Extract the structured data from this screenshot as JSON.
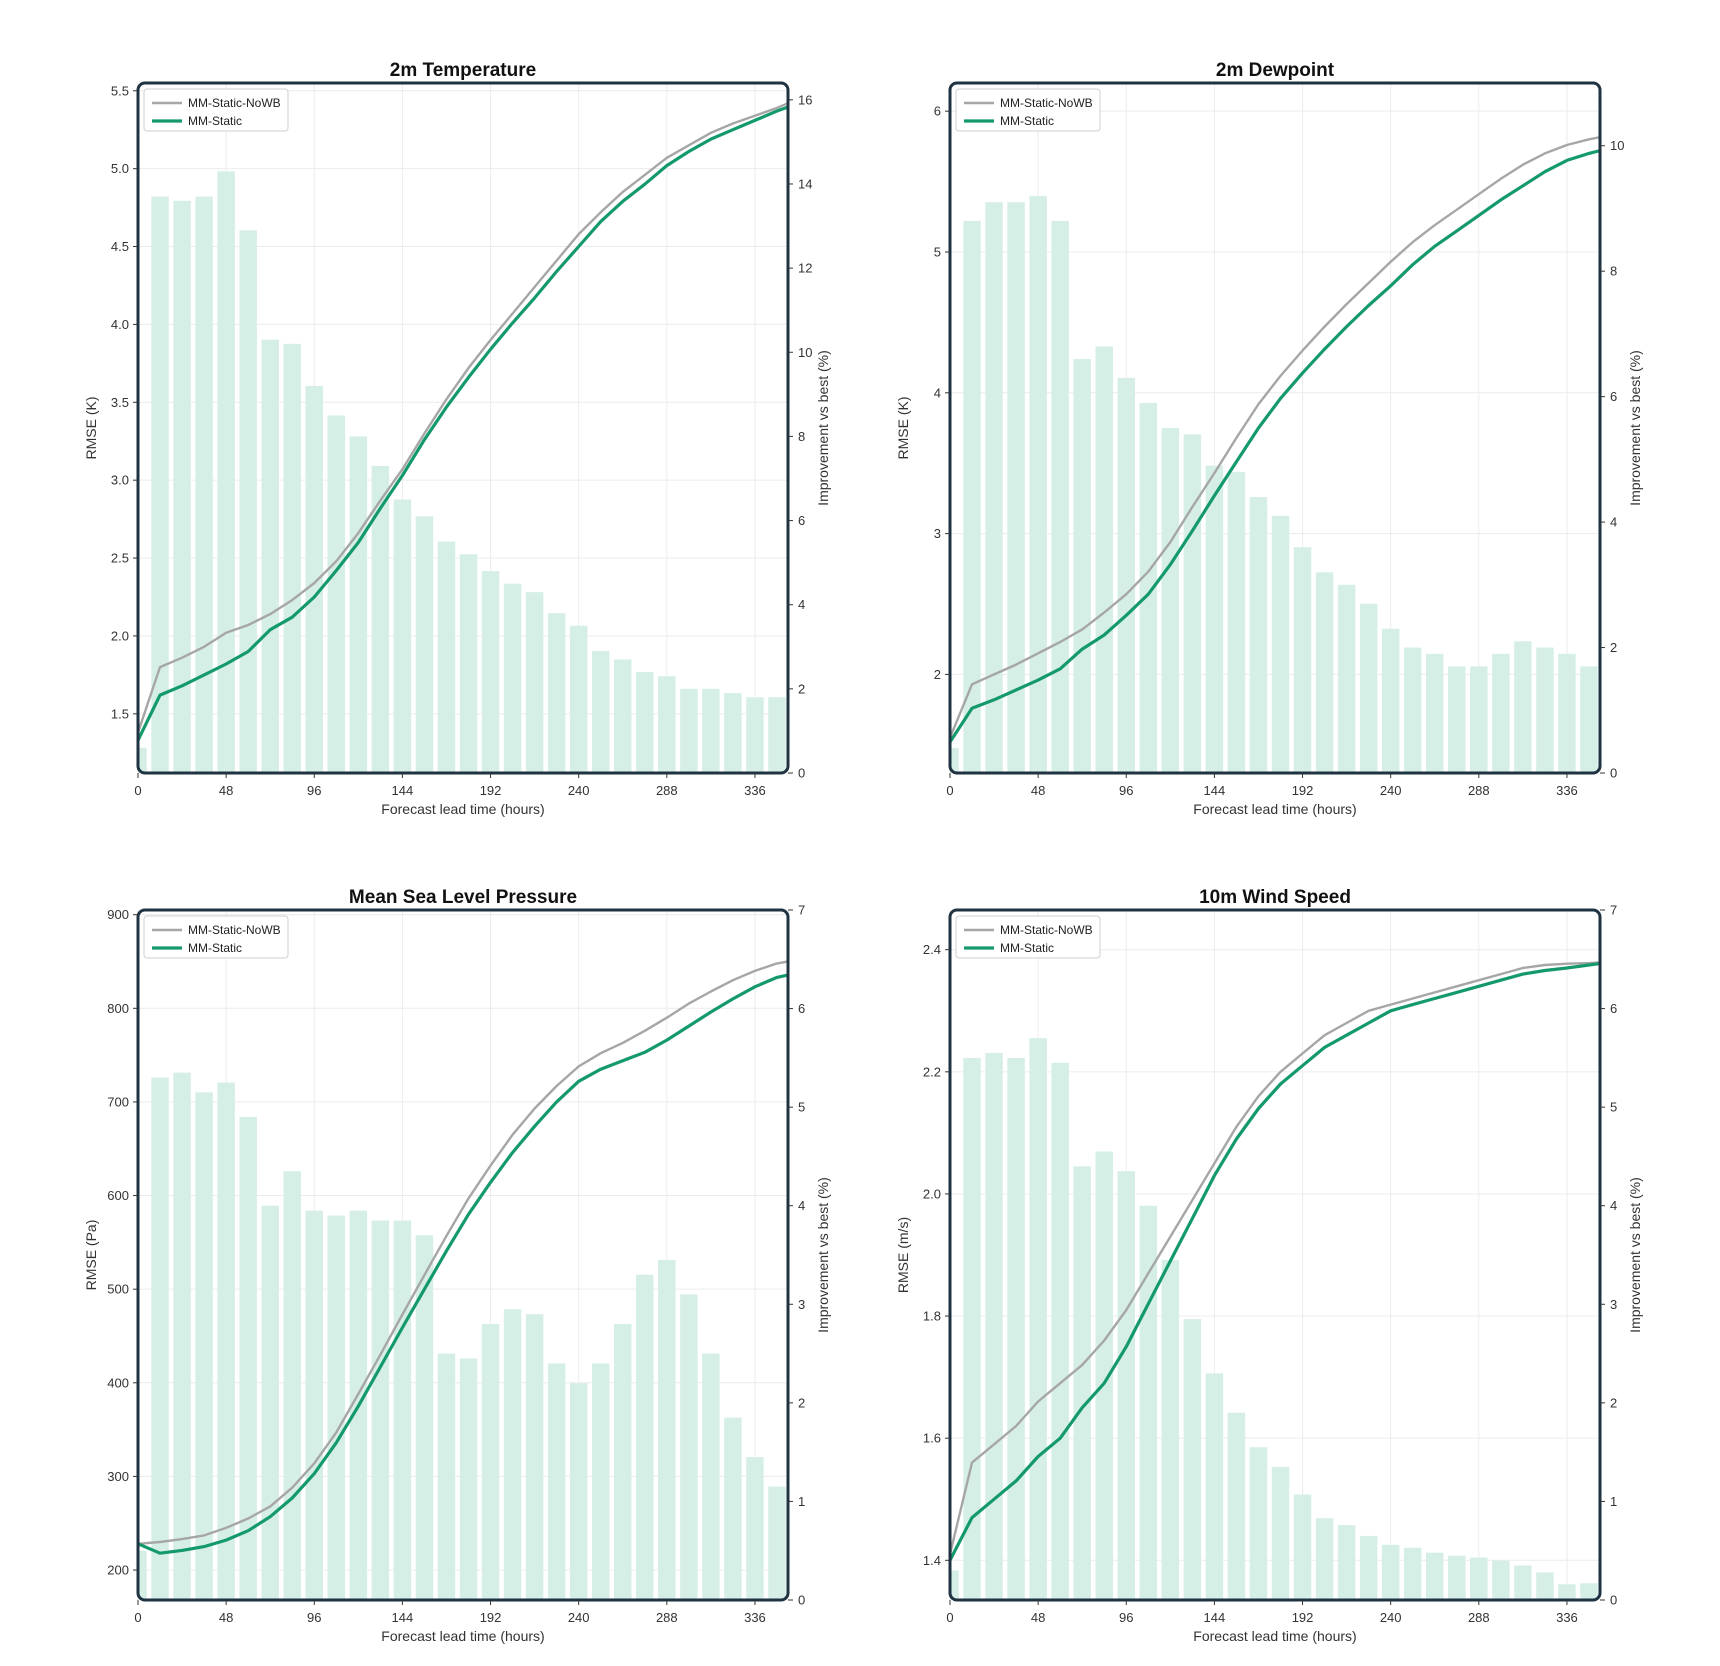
{
  "colors": {
    "frame": "#1f3342",
    "grid": "#ececec",
    "bar": "#d6efe6",
    "nowb_line": "#a6a6a6",
    "static_line": "#14996d"
  },
  "chart_data": [
    {
      "type": "line",
      "title": "2m Temperature",
      "xlabel": "Forecast lead time (hours)",
      "ylabel": "RMSE (K)",
      "y2label": "Improvement vs best (%)",
      "xlim": [
        0,
        354
      ],
      "xticks": [
        0,
        48,
        96,
        144,
        192,
        240,
        288,
        336
      ],
      "ylim": [
        1.12,
        5.55
      ],
      "yticks": [
        1.5,
        2.0,
        2.5,
        3.0,
        3.5,
        4.0,
        4.5,
        5.0,
        5.5
      ],
      "ytick_labels": [
        "1.5",
        "2.0",
        "2.5",
        "3.0",
        "3.5",
        "4.0",
        "4.5",
        "5.0",
        "5.5"
      ],
      "y2lim": [
        0,
        16.4
      ],
      "y2ticks": [
        0,
        2,
        4,
        6,
        8,
        10,
        12,
        14,
        16
      ],
      "grid": true,
      "legend": "top-left",
      "x": [
        0,
        12,
        24,
        36,
        48,
        60,
        72,
        84,
        96,
        108,
        120,
        132,
        144,
        156,
        168,
        180,
        192,
        204,
        216,
        228,
        240,
        252,
        264,
        276,
        288,
        300,
        312,
        324,
        336,
        348,
        360
      ],
      "series": [
        {
          "name": "MM-Static-NoWB",
          "color_key": "nowb_line",
          "values": [
            1.38,
            1.8,
            1.86,
            1.93,
            2.02,
            2.07,
            2.14,
            2.23,
            2.34,
            2.48,
            2.66,
            2.87,
            3.07,
            3.3,
            3.52,
            3.72,
            3.9,
            4.07,
            4.24,
            4.41,
            4.58,
            4.72,
            4.85,
            4.96,
            5.07,
            5.15,
            5.23,
            5.29,
            5.34,
            5.39,
            5.45
          ]
        },
        {
          "name": "MM-Static",
          "color_key": "static_line",
          "values": [
            1.33,
            1.62,
            1.68,
            1.75,
            1.82,
            1.9,
            2.04,
            2.12,
            2.25,
            2.42,
            2.6,
            2.82,
            3.03,
            3.26,
            3.47,
            3.66,
            3.84,
            4.01,
            4.17,
            4.34,
            4.5,
            4.66,
            4.79,
            4.9,
            5.02,
            5.11,
            5.19,
            5.25,
            5.31,
            5.37,
            5.42
          ]
        }
      ],
      "bar_series": {
        "axis": "secondary",
        "x": [
          0,
          12,
          24,
          36,
          48,
          60,
          72,
          84,
          96,
          108,
          120,
          132,
          144,
          156,
          168,
          180,
          192,
          204,
          216,
          228,
          240,
          252,
          264,
          276,
          288,
          300,
          312,
          324,
          336,
          348
        ],
        "values": [
          0.6,
          13.7,
          13.6,
          13.7,
          14.3,
          12.9,
          10.3,
          10.2,
          9.2,
          8.5,
          8.0,
          7.3,
          6.5,
          6.1,
          5.5,
          5.2,
          4.8,
          4.5,
          4.3,
          3.8,
          3.5,
          2.9,
          2.7,
          2.4,
          2.3,
          2.0,
          2.0,
          1.9,
          1.8,
          1.8
        ]
      }
    },
    {
      "type": "line",
      "title": "2m Dewpoint",
      "xlabel": "Forecast lead time (hours)",
      "ylabel": "RMSE (K)",
      "y2label": "Improvement vs best (%)",
      "xlim": [
        0,
        354
      ],
      "xticks": [
        0,
        48,
        96,
        144,
        192,
        240,
        288,
        336
      ],
      "ylim": [
        1.3,
        6.2
      ],
      "yticks": [
        2,
        3,
        4,
        5,
        6
      ],
      "ytick_labels": [
        "2",
        "3",
        "4",
        "5",
        "6"
      ],
      "y2lim": [
        0,
        11.0
      ],
      "y2ticks": [
        0,
        2,
        4,
        6,
        8,
        10
      ],
      "grid": true,
      "legend": "top-left",
      "x": [
        0,
        12,
        24,
        36,
        48,
        60,
        72,
        84,
        96,
        108,
        120,
        132,
        144,
        156,
        168,
        180,
        192,
        204,
        216,
        228,
        240,
        252,
        264,
        276,
        288,
        300,
        312,
        324,
        336,
        348,
        360
      ],
      "series": [
        {
          "name": "MM-Static-NoWB",
          "color_key": "nowb_line",
          "values": [
            1.55,
            1.93,
            2.0,
            2.07,
            2.15,
            2.23,
            2.32,
            2.44,
            2.57,
            2.73,
            2.94,
            3.19,
            3.43,
            3.68,
            3.92,
            4.12,
            4.3,
            4.47,
            4.63,
            4.78,
            4.93,
            5.07,
            5.19,
            5.3,
            5.41,
            5.52,
            5.62,
            5.7,
            5.76,
            5.8,
            5.83
          ]
        },
        {
          "name": "MM-Static",
          "color_key": "static_line",
          "values": [
            1.52,
            1.76,
            1.82,
            1.89,
            1.96,
            2.04,
            2.18,
            2.28,
            2.42,
            2.57,
            2.78,
            3.02,
            3.27,
            3.51,
            3.75,
            3.96,
            4.14,
            4.31,
            4.47,
            4.62,
            4.76,
            4.91,
            5.04,
            5.15,
            5.26,
            5.37,
            5.47,
            5.57,
            5.65,
            5.7,
            5.74
          ]
        }
      ],
      "bar_series": {
        "axis": "secondary",
        "x": [
          0,
          12,
          24,
          36,
          48,
          60,
          72,
          84,
          96,
          108,
          120,
          132,
          144,
          156,
          168,
          180,
          192,
          204,
          216,
          228,
          240,
          252,
          264,
          276,
          288,
          300,
          312,
          324,
          336,
          348
        ],
        "values": [
          0.4,
          8.8,
          9.1,
          9.1,
          9.2,
          8.8,
          6.6,
          6.8,
          6.3,
          5.9,
          5.5,
          5.4,
          4.9,
          4.8,
          4.4,
          4.1,
          3.6,
          3.2,
          3.0,
          2.7,
          2.3,
          2.0,
          1.9,
          1.7,
          1.7,
          1.9,
          2.1,
          2.0,
          1.9,
          1.7
        ]
      }
    },
    {
      "type": "line",
      "title": "Mean Sea Level Pressure",
      "xlabel": "Forecast lead time (hours)",
      "ylabel": "RMSE (Pa)",
      "y2label": "Improvement vs best (%)",
      "xlim": [
        0,
        354
      ],
      "xticks": [
        0,
        48,
        96,
        144,
        192,
        240,
        288,
        336
      ],
      "ylim": [
        168,
        905
      ],
      "yticks": [
        200,
        300,
        400,
        500,
        600,
        700,
        800,
        900
      ],
      "ytick_labels": [
        "200",
        "300",
        "400",
        "500",
        "600",
        "700",
        "800",
        "900"
      ],
      "y2lim": [
        0,
        7.0
      ],
      "y2ticks": [
        0,
        1,
        2,
        3,
        4,
        5,
        6,
        7
      ],
      "grid": true,
      "legend": "top-left",
      "x": [
        0,
        12,
        24,
        36,
        48,
        60,
        72,
        84,
        96,
        108,
        120,
        132,
        144,
        156,
        168,
        180,
        192,
        204,
        216,
        228,
        240,
        252,
        264,
        276,
        288,
        300,
        312,
        324,
        336,
        348,
        360
      ],
      "series": [
        {
          "name": "MM-Static-NoWB",
          "color_key": "nowb_line",
          "values": [
            228,
            230,
            233,
            237,
            245,
            255,
            268,
            288,
            314,
            347,
            388,
            430,
            473,
            515,
            557,
            597,
            632,
            665,
            693,
            717,
            738,
            752,
            763,
            776,
            790,
            805,
            818,
            830,
            840,
            848,
            852
          ]
        },
        {
          "name": "MM-Static",
          "color_key": "static_line",
          "values": [
            228,
            218,
            221,
            225,
            232,
            242,
            257,
            277,
            303,
            336,
            375,
            417,
            459,
            500,
            541,
            580,
            614,
            646,
            674,
            700,
            722,
            735,
            744,
            753,
            766,
            781,
            796,
            810,
            823,
            833,
            838
          ]
        }
      ],
      "bar_series": {
        "axis": "secondary",
        "x": [
          0,
          12,
          24,
          36,
          48,
          60,
          72,
          84,
          96,
          108,
          120,
          132,
          144,
          156,
          168,
          180,
          192,
          204,
          216,
          228,
          240,
          252,
          264,
          276,
          288,
          300,
          312,
          324,
          336,
          348
        ],
        "values": [
          0.5,
          5.3,
          5.35,
          5.15,
          5.25,
          4.9,
          4.0,
          4.35,
          3.95,
          3.9,
          3.95,
          3.85,
          3.85,
          3.7,
          2.5,
          2.45,
          2.8,
          2.95,
          2.9,
          2.4,
          2.2,
          2.4,
          2.8,
          3.3,
          3.45,
          3.1,
          2.5,
          1.85,
          1.45,
          1.15
        ]
      }
    },
    {
      "type": "line",
      "title": "10m Wind Speed",
      "xlabel": "Forecast lead time (hours)",
      "ylabel": "RMSE (m/s)",
      "y2label": "Improvement vs best (%)",
      "xlim": [
        0,
        354
      ],
      "xticks": [
        0,
        48,
        96,
        144,
        192,
        240,
        288,
        336
      ],
      "ylim": [
        1.335,
        2.465
      ],
      "yticks": [
        1.4,
        1.6,
        1.8,
        2.0,
        2.2,
        2.4
      ],
      "ytick_labels": [
        "1.4",
        "1.6",
        "1.8",
        "2.0",
        "2.2",
        "2.4"
      ],
      "y2lim": [
        0,
        7.0
      ],
      "y2ticks": [
        0,
        1,
        2,
        3,
        4,
        5,
        6,
        7
      ],
      "grid": true,
      "legend": "top-left",
      "x": [
        0,
        12,
        24,
        36,
        48,
        60,
        72,
        84,
        96,
        108,
        120,
        132,
        144,
        156,
        168,
        180,
        192,
        204,
        216,
        228,
        240,
        252,
        264,
        276,
        288,
        300,
        312,
        324,
        336,
        348,
        360
      ],
      "series": [
        {
          "name": "MM-Static-NoWB",
          "color_key": "nowb_line",
          "values": [
            1.41,
            1.56,
            1.59,
            1.62,
            1.66,
            1.69,
            1.72,
            1.76,
            1.81,
            1.87,
            1.93,
            1.99,
            2.05,
            2.11,
            2.16,
            2.2,
            2.23,
            2.26,
            2.28,
            2.3,
            2.31,
            2.32,
            2.33,
            2.34,
            2.35,
            2.36,
            2.37,
            2.375,
            2.377,
            2.378,
            2.38
          ]
        },
        {
          "name": "MM-Static",
          "color_key": "static_line",
          "values": [
            1.4,
            1.47,
            1.5,
            1.53,
            1.57,
            1.6,
            1.65,
            1.69,
            1.75,
            1.82,
            1.89,
            1.96,
            2.03,
            2.09,
            2.14,
            2.18,
            2.21,
            2.24,
            2.26,
            2.28,
            2.3,
            2.31,
            2.32,
            2.33,
            2.34,
            2.35,
            2.36,
            2.366,
            2.37,
            2.375,
            2.38
          ]
        }
      ],
      "bar_series": {
        "axis": "secondary",
        "x": [
          0,
          12,
          24,
          36,
          48,
          60,
          72,
          84,
          96,
          108,
          120,
          132,
          144,
          156,
          168,
          180,
          192,
          204,
          216,
          228,
          240,
          252,
          264,
          276,
          288,
          300,
          312,
          324,
          336,
          348
        ],
        "values": [
          0.3,
          5.5,
          5.55,
          5.5,
          5.7,
          5.45,
          4.4,
          4.55,
          4.35,
          4.0,
          3.45,
          2.85,
          2.3,
          1.9,
          1.55,
          1.35,
          1.07,
          0.83,
          0.76,
          0.65,
          0.56,
          0.53,
          0.48,
          0.45,
          0.43,
          0.4,
          0.35,
          0.28,
          0.16,
          0.17
        ]
      }
    }
  ]
}
